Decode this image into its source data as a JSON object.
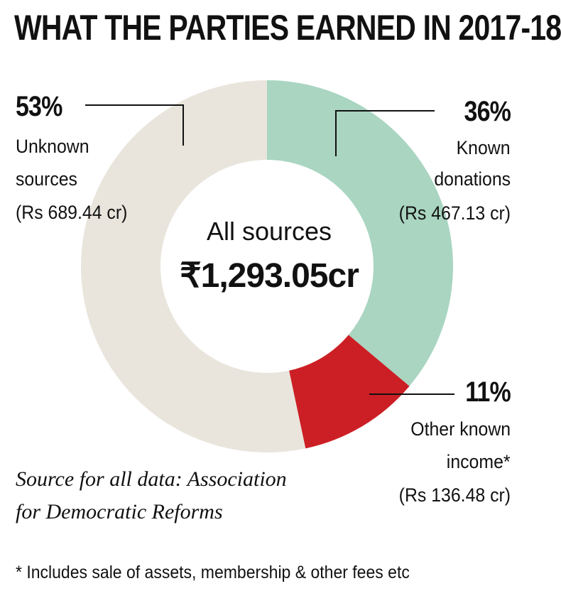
{
  "title": "WHAT THE PARTIES EARNED IN 2017-18",
  "chart_data": {
    "type": "pie",
    "donut": true,
    "center_title": "All sources",
    "center_total": "₹1,293.05cr",
    "slices": [
      {
        "pct_label": "36%",
        "value": 467.13,
        "label_line1": "Known",
        "label_line2": "donations",
        "amount": "(Rs 467.13 cr)",
        "color": "#a9d5c1"
      },
      {
        "pct_label": "11%",
        "value": 136.48,
        "label_line1": "Other known",
        "label_line2": "income*",
        "amount": "(Rs 136.48 cr)",
        "color": "#cc1f25"
      },
      {
        "pct_label": "53%",
        "value": 689.44,
        "label_line1": "Unknown",
        "label_line2": "sources",
        "amount": "(Rs 689.44 cr)",
        "color": "#e9e5dc"
      }
    ]
  },
  "source_line1": "Source for all data: Association",
  "source_line2": "for Democratic Reforms",
  "footnote": "* Includes sale of assets, membership & other fees etc"
}
